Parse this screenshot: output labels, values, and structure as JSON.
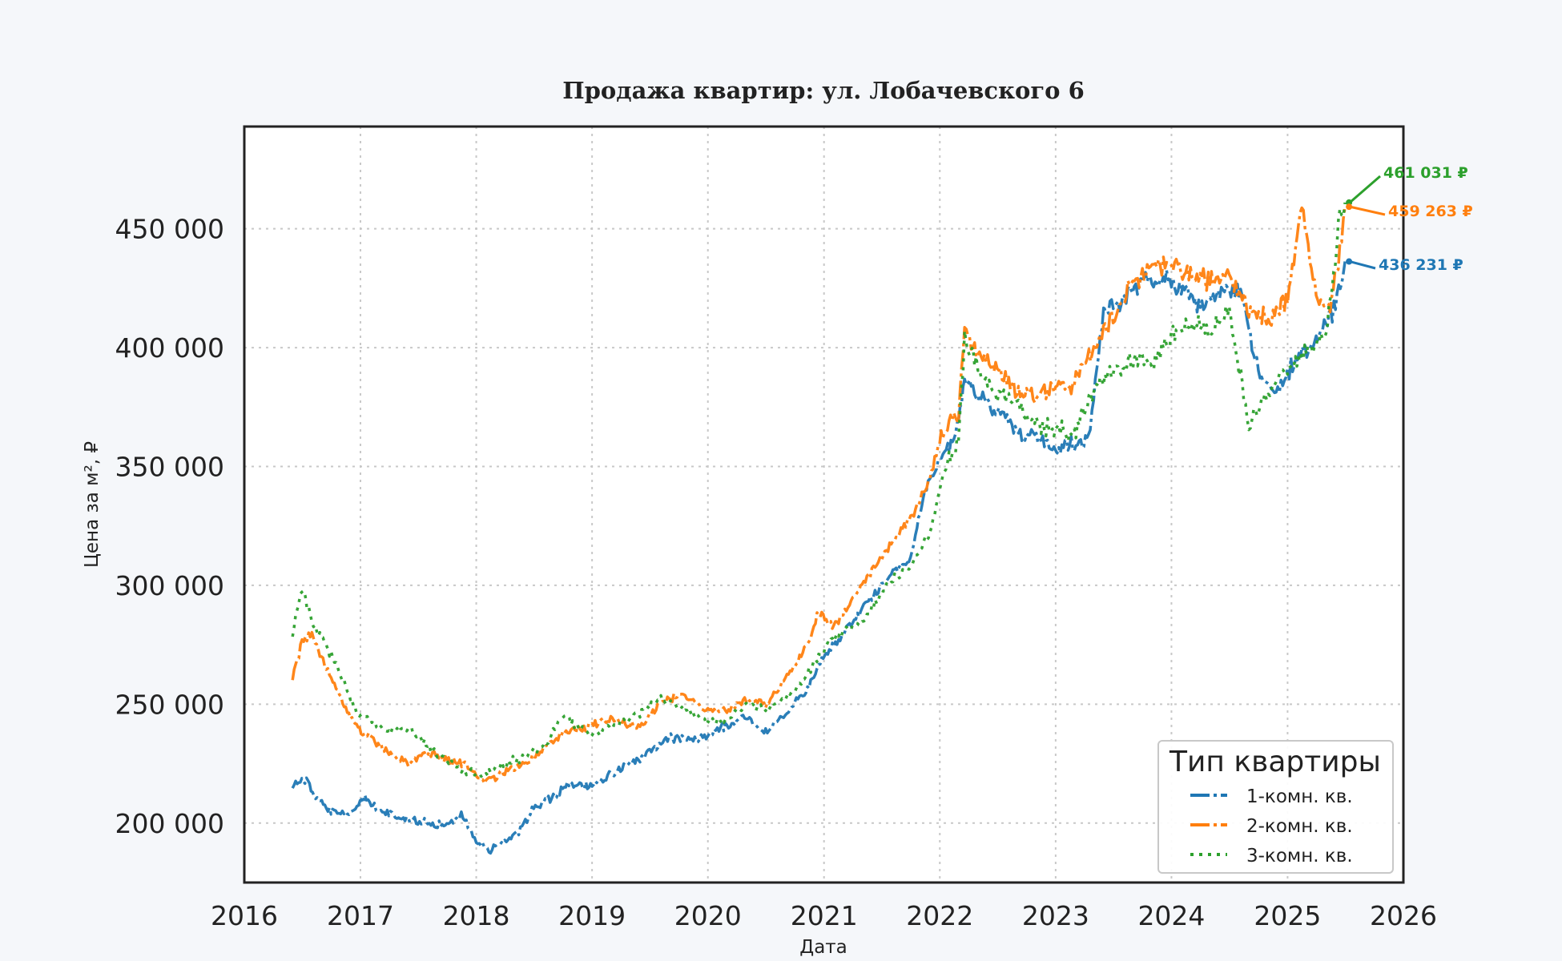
{
  "chart_data": {
    "type": "line",
    "title": "Продажа квартир: ул. Лобачевского 6",
    "xlabel": "Дата",
    "ylabel": "Цена за м², ₽",
    "xlim": [
      "2016-01-01",
      "2026-01-01"
    ],
    "ylim": [
      175000,
      493000
    ],
    "xticks": [
      "2016",
      "2017",
      "2018",
      "2019",
      "2020",
      "2021",
      "2022",
      "2023",
      "2024",
      "2025",
      "2026"
    ],
    "yticks": [
      200000,
      250000,
      300000,
      350000,
      400000,
      450000
    ],
    "ytick_labels": [
      "200 000",
      "250 000",
      "300 000",
      "350 000",
      "400 000",
      "450 000"
    ],
    "grid": true,
    "legend": {
      "title": "Тип квартиры",
      "placement": "lower right"
    },
    "series": [
      {
        "name": "1-комн. кв.",
        "color": "#1f77b4",
        "style": "dashdot",
        "x": [
          "2016-06-01",
          "2016-07-15",
          "2016-09-01",
          "2016-10-15",
          "2016-12-01",
          "2017-01-15",
          "2017-03-01",
          "2017-05-01",
          "2017-07-01",
          "2017-09-01",
          "2017-10-15",
          "2017-11-15",
          "2018-01-01",
          "2018-02-15",
          "2018-04-01",
          "2018-05-15",
          "2018-07-01",
          "2018-09-01",
          "2018-10-15",
          "2019-01-01",
          "2019-03-01",
          "2019-06-01",
          "2019-09-01",
          "2019-12-01",
          "2020-03-01",
          "2020-05-01",
          "2020-07-01",
          "2020-09-01",
          "2020-11-15",
          "2020-12-15",
          "2021-02-01",
          "2021-05-01",
          "2021-08-01",
          "2021-10-01",
          "2021-11-15",
          "2022-01-01",
          "2022-02-15",
          "2022-03-20",
          "2022-05-01",
          "2022-07-01",
          "2022-09-01",
          "2022-11-01",
          "2023-01-01",
          "2023-03-01",
          "2023-04-15",
          "2023-06-01",
          "2023-08-01",
          "2023-10-01",
          "2023-12-01",
          "2024-02-01",
          "2024-04-01",
          "2024-06-01",
          "2024-08-01",
          "2024-10-01",
          "2024-12-01",
          "2025-02-01",
          "2025-04-01",
          "2025-06-01",
          "2025-07-01"
        ],
        "y": [
          216000,
          218000,
          208000,
          204000,
          205000,
          210000,
          206000,
          202000,
          201000,
          199000,
          200000,
          204000,
          192000,
          188000,
          193000,
          196000,
          206000,
          211000,
          216000,
          216000,
          221000,
          227000,
          236000,
          235000,
          241000,
          245000,
          238000,
          246000,
          257000,
          267000,
          275000,
          290000,
          305000,
          311000,
          340000,
          352000,
          360000,
          384000,
          380000,
          373000,
          365000,
          361000,
          357000,
          360000,
          362000,
          415000,
          420000,
          428000,
          430000,
          425000,
          418000,
          422000,
          425000,
          390000,
          382000,
          396000,
          402000,
          418000,
          436231
        ]
      },
      {
        "name": "2-комн. кв.",
        "color": "#ff7f0e",
        "style": "dashdot",
        "x": [
          "2016-06-01",
          "2016-07-01",
          "2016-08-01",
          "2016-09-15",
          "2016-11-01",
          "2016-12-15",
          "2017-02-01",
          "2017-04-01",
          "2017-06-01",
          "2017-08-01",
          "2017-10-01",
          "2017-12-01",
          "2018-02-01",
          "2018-04-01",
          "2018-06-01",
          "2018-08-01",
          "2018-10-01",
          "2019-01-01",
          "2019-03-01",
          "2019-06-01",
          "2019-08-01",
          "2019-10-01",
          "2020-01-01",
          "2020-03-01",
          "2020-05-01",
          "2020-07-01",
          "2020-09-01",
          "2020-11-15",
          "2020-12-15",
          "2021-02-01",
          "2021-05-01",
          "2021-08-01",
          "2021-10-01",
          "2021-12-01",
          "2022-01-15",
          "2022-03-01",
          "2022-03-20",
          "2022-05-01",
          "2022-07-01",
          "2022-09-01",
          "2022-11-01",
          "2023-01-01",
          "2023-03-01",
          "2023-05-01",
          "2023-07-01",
          "2023-09-01",
          "2023-11-01",
          "2024-01-01",
          "2024-03-01",
          "2024-05-01",
          "2024-07-01",
          "2024-09-01",
          "2024-11-01",
          "2025-01-01",
          "2025-02-15",
          "2025-04-01",
          "2025-05-15",
          "2025-06-15",
          "2025-07-01"
        ],
        "y": [
          261000,
          276000,
          280000,
          265000,
          252000,
          241000,
          236000,
          230000,
          225000,
          230000,
          226000,
          225000,
          217000,
          222000,
          224000,
          232000,
          238000,
          241000,
          244000,
          240000,
          250000,
          254000,
          248000,
          247000,
          252000,
          250000,
          260000,
          276000,
          289000,
          282000,
          300000,
          318000,
          328000,
          345000,
          367000,
          372000,
          407000,
          398000,
          392000,
          382000,
          380000,
          383000,
          385000,
          400000,
          412000,
          428000,
          433000,
          435000,
          431000,
          428000,
          432000,
          415000,
          412000,
          420000,
          460000,
          420000,
          416000,
          440000,
          459263
        ]
      },
      {
        "name": "3-комн. кв.",
        "color": "#2ca02c",
        "style": "dotted",
        "x": [
          "2016-06-01",
          "2016-07-01",
          "2016-08-01",
          "2016-09-15",
          "2016-11-01",
          "2016-12-15",
          "2017-02-01",
          "2017-04-01",
          "2017-06-01",
          "2017-08-01",
          "2017-10-01",
          "2017-12-01",
          "2018-02-01",
          "2018-04-01",
          "2018-06-01",
          "2018-08-01",
          "2018-10-01",
          "2019-01-01",
          "2019-03-01",
          "2019-06-01",
          "2019-08-01",
          "2019-10-01",
          "2020-01-01",
          "2020-03-01",
          "2020-05-01",
          "2020-07-01",
          "2020-09-01",
          "2020-11-15",
          "2020-12-15",
          "2021-02-01",
          "2021-05-01",
          "2021-08-01",
          "2021-10-01",
          "2021-12-01",
          "2022-01-15",
          "2022-03-01",
          "2022-03-20",
          "2022-05-01",
          "2022-07-01",
          "2022-09-01",
          "2022-11-01",
          "2023-01-01",
          "2023-03-01",
          "2023-05-01",
          "2023-07-01",
          "2023-09-01",
          "2023-11-01",
          "2024-01-01",
          "2024-03-01",
          "2024-05-01",
          "2024-07-01",
          "2024-09-01",
          "2024-11-01",
          "2025-01-01",
          "2025-03-01",
          "2025-05-01",
          "2025-06-15",
          "2025-07-01"
        ],
        "y": [
          280000,
          299000,
          285000,
          275000,
          262000,
          248000,
          243000,
          238000,
          240000,
          232000,
          226000,
          222000,
          220000,
          225000,
          228000,
          232000,
          245000,
          237000,
          240000,
          246000,
          253000,
          249000,
          243000,
          244000,
          250000,
          248000,
          252000,
          264000,
          270000,
          278000,
          285000,
          302000,
          308000,
          322000,
          348000,
          360000,
          404000,
          392000,
          380000,
          376000,
          368000,
          366000,
          364000,
          382000,
          390000,
          395000,
          393000,
          405000,
          410000,
          408000,
          415000,
          368000,
          382000,
          390000,
          398000,
          404000,
          455000,
          461031
        ]
      }
    ],
    "annotations": [
      {
        "series": "3-комн. кв.",
        "text": "461 031 ₽"
      },
      {
        "series": "2-комн. кв.",
        "text": "459 263 ₽"
      },
      {
        "series": "1-комн. кв.",
        "text": "436 231 ₽"
      }
    ]
  }
}
